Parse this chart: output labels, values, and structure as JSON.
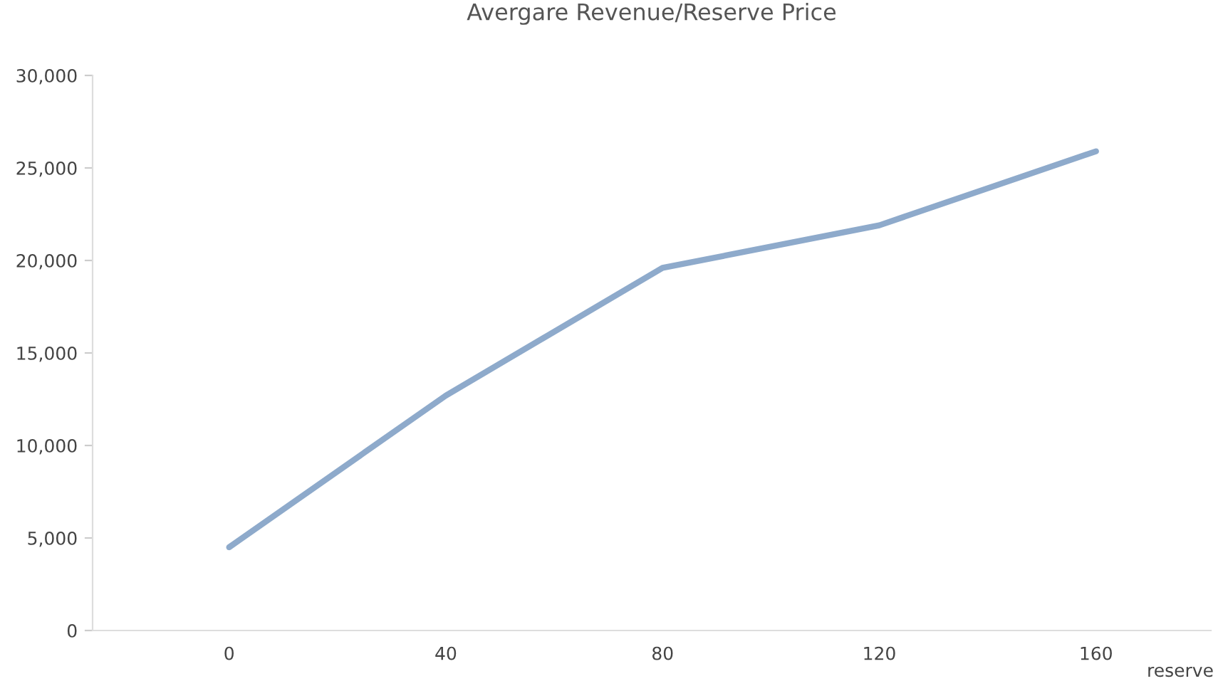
{
  "chart_data": {
    "type": "line",
    "title": "Avergare Revenue/Reserve Price",
    "xlabel": "reserve",
    "categories": [
      "0",
      "40",
      "80",
      "120",
      "160"
    ],
    "series": [
      {
        "color": "#8eaacb",
        "values": [
          4500,
          12700,
          19600,
          21900,
          25900
        ]
      }
    ],
    "ylim": [
      0,
      30000
    ],
    "yticks": [
      {
        "value": 0,
        "label": "0"
      },
      {
        "value": 5000,
        "label": "5,000"
      },
      {
        "value": 10000,
        "label": "10,000"
      },
      {
        "value": 15000,
        "label": "15,000"
      },
      {
        "value": 20000,
        "label": "20,000"
      },
      {
        "value": 25000,
        "label": "25,000"
      },
      {
        "value": 30000,
        "label": "30,000"
      }
    ],
    "grid": false,
    "marker": "none",
    "line_style": "solid"
  }
}
